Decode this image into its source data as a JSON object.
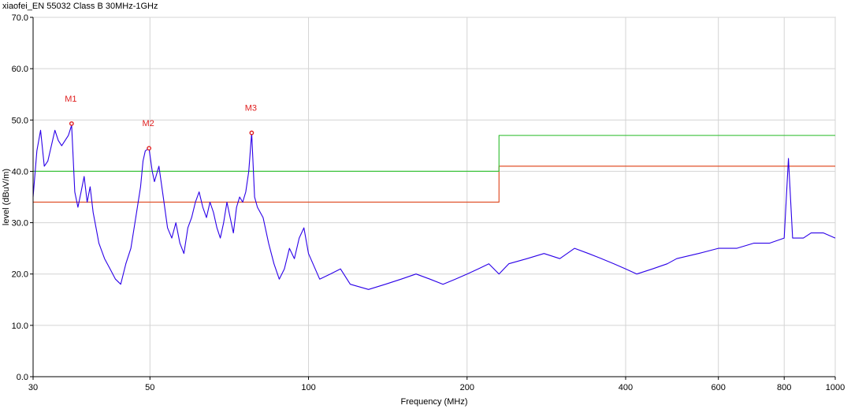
{
  "chart_data": {
    "type": "line",
    "title": "xiaofei_EN 55032 Class B 30MHz-1GHz",
    "xlabel": "Frequency (MHz)",
    "ylabel": "level (dBuV/m)",
    "x_scale": "log",
    "xlim": [
      30,
      1000
    ],
    "ylim": [
      0,
      70
    ],
    "x_ticks": [
      30,
      50,
      100,
      200,
      400,
      600,
      800,
      1000
    ],
    "y_ticks": [
      0,
      10,
      20,
      30,
      40,
      50,
      60,
      70
    ],
    "grid": true,
    "colors": {
      "trace": "#2b00e8",
      "limit_qp": "#e0502a",
      "limit_pk": "#3cc23c",
      "marker": "#e02020",
      "grid": "#d4d4d4"
    },
    "series": [
      {
        "name": "",
        "role": "limit-qp",
        "points": [
          [
            30,
            34
          ],
          [
            230,
            34
          ],
          [
            230,
            41
          ],
          [
            1000,
            41
          ]
        ]
      },
      {
        "name": "",
        "role": "limit-pk",
        "points": [
          [
            30,
            40
          ],
          [
            230,
            40
          ],
          [
            230,
            47
          ],
          [
            1000,
            47
          ]
        ]
      },
      {
        "name": "",
        "role": "trace",
        "points": [
          [
            30,
            35
          ],
          [
            30.5,
            44
          ],
          [
            31,
            48
          ],
          [
            31.5,
            41
          ],
          [
            32,
            42
          ],
          [
            32.5,
            45
          ],
          [
            33,
            48
          ],
          [
            33.5,
            46
          ],
          [
            34,
            45
          ],
          [
            35,
            47
          ],
          [
            35.5,
            49
          ],
          [
            36,
            36
          ],
          [
            36.5,
            33
          ],
          [
            37,
            36
          ],
          [
            37.5,
            39
          ],
          [
            38,
            34
          ],
          [
            38.5,
            37
          ],
          [
            39,
            32
          ],
          [
            39.5,
            29
          ],
          [
            40,
            26
          ],
          [
            41,
            23
          ],
          [
            42,
            21
          ],
          [
            43,
            19
          ],
          [
            44,
            18
          ],
          [
            45,
            22
          ],
          [
            46,
            25
          ],
          [
            47,
            31
          ],
          [
            48,
            37
          ],
          [
            48.5,
            42
          ],
          [
            49,
            44
          ],
          [
            49.8,
            44.5
          ],
          [
            50.5,
            40
          ],
          [
            51,
            38
          ],
          [
            52,
            41
          ],
          [
            53,
            35
          ],
          [
            54,
            29
          ],
          [
            55,
            27
          ],
          [
            56,
            30
          ],
          [
            57,
            26
          ],
          [
            58,
            24
          ],
          [
            59,
            29
          ],
          [
            60,
            31
          ],
          [
            61,
            34
          ],
          [
            62,
            36
          ],
          [
            63,
            33
          ],
          [
            64,
            31
          ],
          [
            65,
            34
          ],
          [
            66,
            32
          ],
          [
            67,
            29
          ],
          [
            68,
            27
          ],
          [
            69,
            30
          ],
          [
            70,
            34
          ],
          [
            71,
            31
          ],
          [
            72,
            28
          ],
          [
            73,
            33
          ],
          [
            74,
            35
          ],
          [
            75,
            34
          ],
          [
            76,
            36
          ],
          [
            77,
            40
          ],
          [
            78,
            47.5
          ],
          [
            79,
            35
          ],
          [
            80,
            33
          ],
          [
            82,
            31
          ],
          [
            84,
            26
          ],
          [
            86,
            22
          ],
          [
            88,
            19
          ],
          [
            90,
            21
          ],
          [
            92,
            25
          ],
          [
            94,
            23
          ],
          [
            96,
            27
          ],
          [
            98,
            29
          ],
          [
            100,
            24
          ],
          [
            105,
            19
          ],
          [
            110,
            20
          ],
          [
            115,
            21
          ],
          [
            120,
            18
          ],
          [
            130,
            17
          ],
          [
            140,
            18
          ],
          [
            150,
            19
          ],
          [
            160,
            20
          ],
          [
            170,
            19
          ],
          [
            180,
            18
          ],
          [
            190,
            19
          ],
          [
            200,
            20
          ],
          [
            210,
            21
          ],
          [
            220,
            22
          ],
          [
            230,
            20
          ],
          [
            240,
            22
          ],
          [
            260,
            23
          ],
          [
            280,
            24
          ],
          [
            300,
            23
          ],
          [
            320,
            25
          ],
          [
            340,
            24
          ],
          [
            360,
            23
          ],
          [
            380,
            22
          ],
          [
            400,
            21
          ],
          [
            420,
            20
          ],
          [
            450,
            21
          ],
          [
            480,
            22
          ],
          [
            500,
            23
          ],
          [
            550,
            24
          ],
          [
            600,
            25
          ],
          [
            650,
            25
          ],
          [
            700,
            26
          ],
          [
            750,
            26
          ],
          [
            800,
            27
          ],
          [
            815,
            42.5
          ],
          [
            830,
            27
          ],
          [
            870,
            27
          ],
          [
            900,
            28
          ],
          [
            950,
            28
          ],
          [
            1000,
            27
          ]
        ]
      }
    ],
    "markers": [
      {
        "label": "M1",
        "x": 35.5,
        "y": 49.3
      },
      {
        "label": "M2",
        "x": 49.8,
        "y": 44.5
      },
      {
        "label": "M3",
        "x": 78,
        "y": 47.5
      }
    ]
  }
}
